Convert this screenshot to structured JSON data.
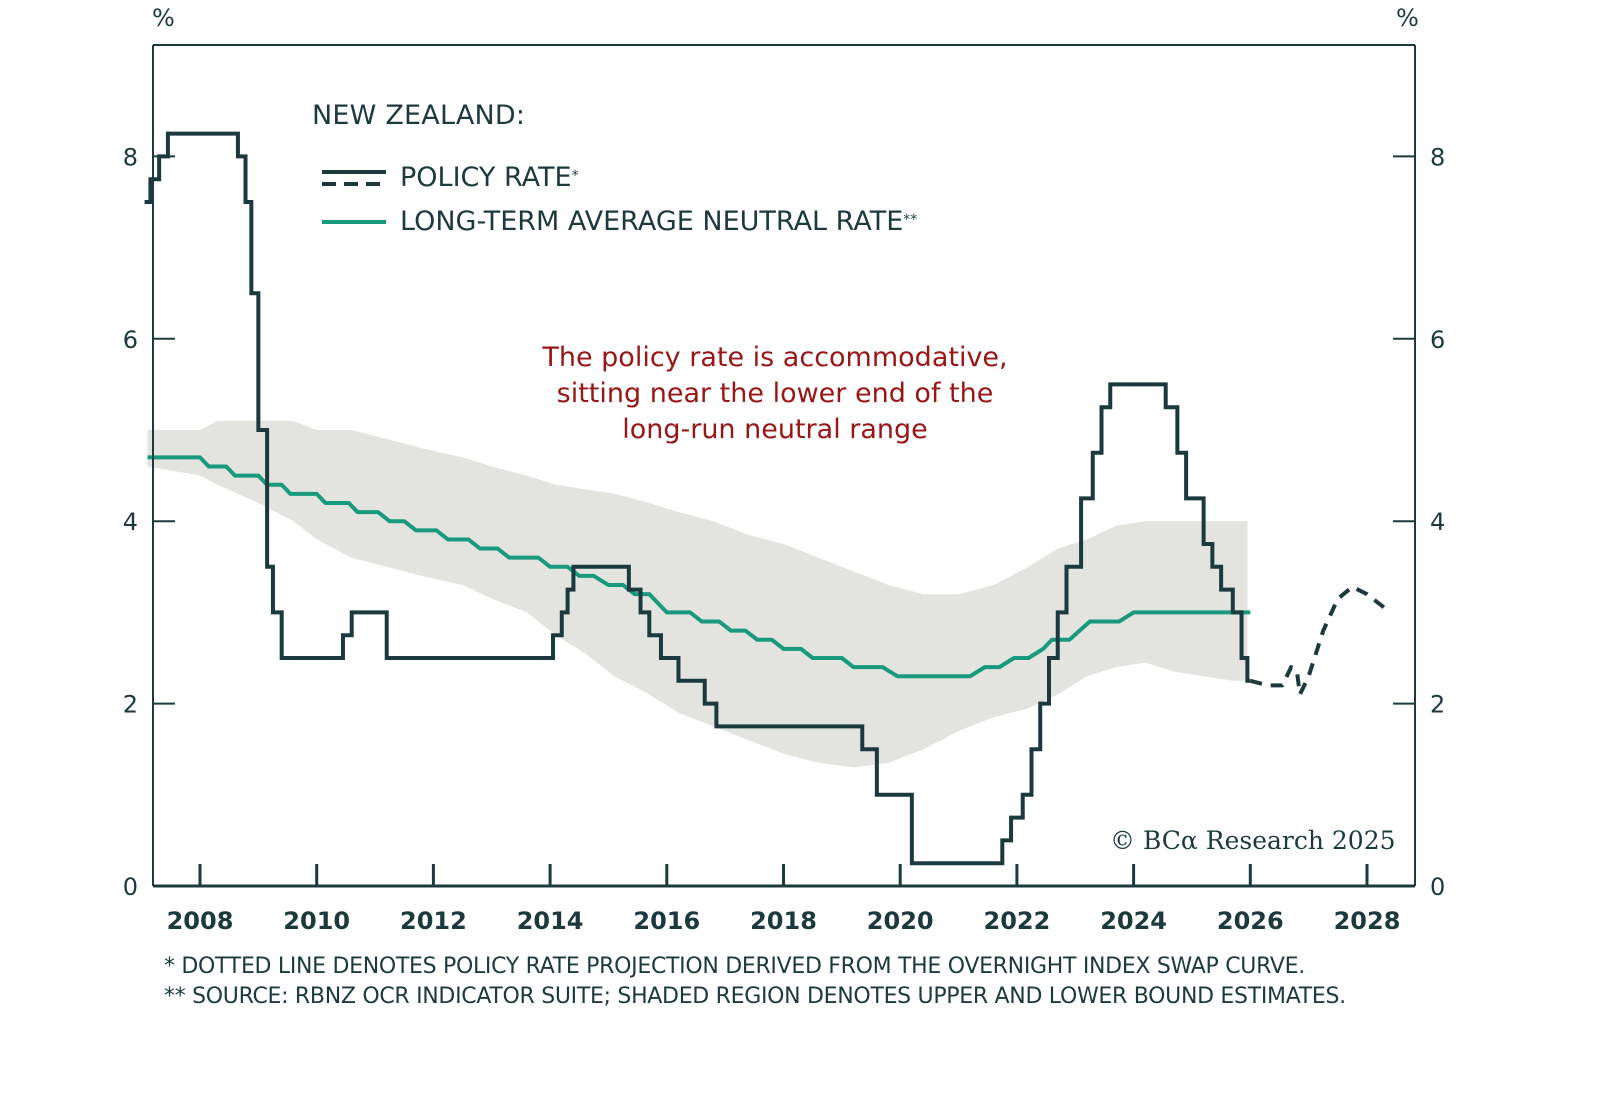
{
  "chart_data": {
    "type": "line",
    "title": "NEW ZEALAND:",
    "xlabel": "",
    "ylabel": "%",
    "ylabel_right": "%",
    "xlim": [
      2007.1,
      2029.2
    ],
    "ylim": [
      0,
      9.2
    ],
    "x_ticks": [
      2008,
      2010,
      2012,
      2014,
      2016,
      2018,
      2020,
      2022,
      2024,
      2026,
      2028
    ],
    "x_tick_labels": [
      "2008",
      "2010",
      "2012",
      "2014",
      "2016",
      "2018",
      "2020",
      "2022",
      "2024",
      "2026",
      "2028"
    ],
    "y_ticks": [
      0,
      2,
      4,
      6,
      8
    ],
    "y_tick_labels": [
      "0",
      "2",
      "4",
      "6",
      "8"
    ],
    "grid": false,
    "legend": {
      "position": "top-left",
      "entries": [
        {
          "label": "POLICY RATE",
          "suffix": "*",
          "style": "solid+dashed",
          "color": "#1c3a3e"
        },
        {
          "label": "LONG-TERM AVERAGE NEUTRAL RATE",
          "suffix": "**",
          "style": "solid",
          "color": "#1a9a7c"
        }
      ]
    },
    "annotation": [
      "The policy rate is accommodative,",
      "sitting near the lower end of the",
      "long-run neutral range"
    ],
    "series": [
      {
        "name": "Policy rate",
        "kind": "step",
        "color": "#1c3a3e",
        "points": [
          [
            2007.05,
            7.5
          ],
          [
            2007.15,
            7.75
          ],
          [
            2007.3,
            8.0
          ],
          [
            2007.45,
            8.25
          ],
          [
            2008.65,
            8.0
          ],
          [
            2008.78,
            7.5
          ],
          [
            2008.88,
            6.5
          ],
          [
            2009.0,
            5.0
          ],
          [
            2009.15,
            3.5
          ],
          [
            2009.25,
            3.0
          ],
          [
            2009.4,
            2.5
          ],
          [
            2010.45,
            2.75
          ],
          [
            2010.6,
            3.0
          ],
          [
            2011.2,
            2.5
          ],
          [
            2014.05,
            2.75
          ],
          [
            2014.2,
            3.0
          ],
          [
            2014.3,
            3.25
          ],
          [
            2014.4,
            3.5
          ],
          [
            2015.35,
            3.25
          ],
          [
            2015.55,
            3.0
          ],
          [
            2015.7,
            2.75
          ],
          [
            2015.9,
            2.5
          ],
          [
            2016.2,
            2.25
          ],
          [
            2016.65,
            2.0
          ],
          [
            2016.85,
            1.75
          ],
          [
            2019.35,
            1.5
          ],
          [
            2019.6,
            1.0
          ],
          [
            2020.2,
            0.25
          ],
          [
            2021.75,
            0.5
          ],
          [
            2021.9,
            0.75
          ],
          [
            2022.1,
            1.0
          ],
          [
            2022.25,
            1.5
          ],
          [
            2022.4,
            2.0
          ],
          [
            2022.55,
            2.5
          ],
          [
            2022.7,
            3.0
          ],
          [
            2022.85,
            3.5
          ],
          [
            2023.1,
            4.25
          ],
          [
            2023.3,
            4.75
          ],
          [
            2023.45,
            5.25
          ],
          [
            2023.6,
            5.5
          ],
          [
            2024.55,
            5.25
          ],
          [
            2024.75,
            4.75
          ],
          [
            2024.9,
            4.25
          ],
          [
            2025.2,
            3.75
          ],
          [
            2025.35,
            3.5
          ],
          [
            2025.5,
            3.25
          ],
          [
            2025.7,
            3.0
          ],
          [
            2025.85,
            2.5
          ],
          [
            2025.95,
            2.25
          ]
        ],
        "end": 2026.0
      },
      {
        "name": "Policy rate projection (OIS)",
        "kind": "dashed",
        "color": "#1c3a3e",
        "points": [
          [
            2026.0,
            2.25
          ],
          [
            2026.3,
            2.2
          ],
          [
            2026.55,
            2.2
          ],
          [
            2026.7,
            2.4
          ],
          [
            2026.8,
            2.35
          ],
          [
            2026.85,
            2.1
          ],
          [
            2027.0,
            2.3
          ],
          [
            2027.25,
            2.8
          ],
          [
            2027.5,
            3.15
          ],
          [
            2027.75,
            3.28
          ],
          [
            2028.0,
            3.2
          ],
          [
            2028.3,
            3.05
          ]
        ]
      },
      {
        "name": "Long-term average neutral rate",
        "kind": "line",
        "color": "#1a9a7c",
        "points": [
          [
            2007.1,
            4.7
          ],
          [
            2008.0,
            4.7
          ],
          [
            2008.15,
            4.6
          ],
          [
            2008.45,
            4.6
          ],
          [
            2008.6,
            4.5
          ],
          [
            2009.0,
            4.5
          ],
          [
            2009.15,
            4.4
          ],
          [
            2009.4,
            4.4
          ],
          [
            2009.55,
            4.3
          ],
          [
            2010.0,
            4.3
          ],
          [
            2010.15,
            4.2
          ],
          [
            2010.55,
            4.2
          ],
          [
            2010.7,
            4.1
          ],
          [
            2011.05,
            4.1
          ],
          [
            2011.25,
            4.0
          ],
          [
            2011.5,
            4.0
          ],
          [
            2011.7,
            3.9
          ],
          [
            2012.05,
            3.9
          ],
          [
            2012.25,
            3.8
          ],
          [
            2012.6,
            3.8
          ],
          [
            2012.8,
            3.7
          ],
          [
            2013.1,
            3.7
          ],
          [
            2013.3,
            3.6
          ],
          [
            2013.8,
            3.6
          ],
          [
            2014.0,
            3.5
          ],
          [
            2014.3,
            3.5
          ],
          [
            2014.5,
            3.4
          ],
          [
            2014.75,
            3.4
          ],
          [
            2015.0,
            3.3
          ],
          [
            2015.25,
            3.3
          ],
          [
            2015.45,
            3.2
          ],
          [
            2015.7,
            3.2
          ],
          [
            2016.0,
            3.0
          ],
          [
            2016.4,
            3.0
          ],
          [
            2016.6,
            2.9
          ],
          [
            2016.9,
            2.9
          ],
          [
            2017.1,
            2.8
          ],
          [
            2017.35,
            2.8
          ],
          [
            2017.55,
            2.7
          ],
          [
            2017.8,
            2.7
          ],
          [
            2018.0,
            2.6
          ],
          [
            2018.3,
            2.6
          ],
          [
            2018.5,
            2.5
          ],
          [
            2019.0,
            2.5
          ],
          [
            2019.2,
            2.4
          ],
          [
            2019.7,
            2.4
          ],
          [
            2019.95,
            2.3
          ],
          [
            2021.2,
            2.3
          ],
          [
            2021.45,
            2.4
          ],
          [
            2021.7,
            2.4
          ],
          [
            2021.95,
            2.5
          ],
          [
            2022.2,
            2.5
          ],
          [
            2022.45,
            2.6
          ],
          [
            2022.6,
            2.7
          ],
          [
            2022.9,
            2.7
          ],
          [
            2023.25,
            2.9
          ],
          [
            2023.75,
            2.9
          ],
          [
            2024.0,
            3.0
          ],
          [
            2026.0,
            3.0
          ]
        ]
      }
    ],
    "band": {
      "name": "Upper and lower bound estimates",
      "color": "#e3e4df",
      "x": [
        2007.1,
        2008.0,
        2008.3,
        2009.0,
        2009.6,
        2010.0,
        2010.6,
        2011.2,
        2011.8,
        2012.5,
        2013.0,
        2013.6,
        2014.1,
        2014.6,
        2015.1,
        2015.7,
        2016.2,
        2016.8,
        2017.4,
        2018.0,
        2018.6,
        2019.2,
        2019.8,
        2020.4,
        2021.0,
        2021.6,
        2022.2,
        2022.7,
        2023.2,
        2023.7,
        2024.2,
        2024.7,
        2025.2,
        2025.7,
        2025.95
      ],
      "upper": [
        5.0,
        5.0,
        5.1,
        5.1,
        5.1,
        5.0,
        5.0,
        4.9,
        4.8,
        4.7,
        4.6,
        4.5,
        4.4,
        4.35,
        4.3,
        4.2,
        4.1,
        4.0,
        3.85,
        3.75,
        3.6,
        3.45,
        3.3,
        3.2,
        3.2,
        3.3,
        3.5,
        3.7,
        3.8,
        3.95,
        4.0,
        4.0,
        4.0,
        4.0,
        4.0
      ],
      "lower": [
        4.6,
        4.5,
        4.4,
        4.2,
        4.0,
        3.8,
        3.6,
        3.5,
        3.4,
        3.3,
        3.15,
        3.0,
        2.75,
        2.55,
        2.3,
        2.1,
        1.9,
        1.75,
        1.6,
        1.45,
        1.35,
        1.3,
        1.35,
        1.5,
        1.7,
        1.85,
        1.95,
        2.1,
        2.3,
        2.4,
        2.45,
        2.35,
        2.3,
        2.25,
        2.25
      ]
    }
  },
  "legend": {
    "title": "NEW ZEALAND:",
    "policy_rate": "POLICY RATE",
    "policy_rate_mark": "*",
    "neutral_rate": "LONG-TERM AVERAGE NEUTRAL RATE",
    "neutral_rate_mark": "**"
  },
  "axis": {
    "left_unit": "%",
    "right_unit": "%"
  },
  "annotation": {
    "line1": "The policy rate is accommodative,",
    "line2": "sitting near the lower end of the",
    "line3": "long-run neutral range"
  },
  "copyright": "© BCα Research 2025",
  "footnotes": {
    "note1": "* DOTTED LINE DENOTES POLICY RATE PROJECTION DERIVED FROM THE OVERNIGHT INDEX SWAP CURVE.",
    "note2": "** SOURCE: RBNZ OCR INDICATOR SUITE; SHADED REGION DENOTES UPPER AND LOWER BOUND ESTIMATES."
  },
  "colors": {
    "policy": "#1c3a3e",
    "neutral": "#1a9a7c",
    "band": "#e3e4df",
    "annotation": "#9a1515",
    "axis": "#1c3a3e"
  }
}
